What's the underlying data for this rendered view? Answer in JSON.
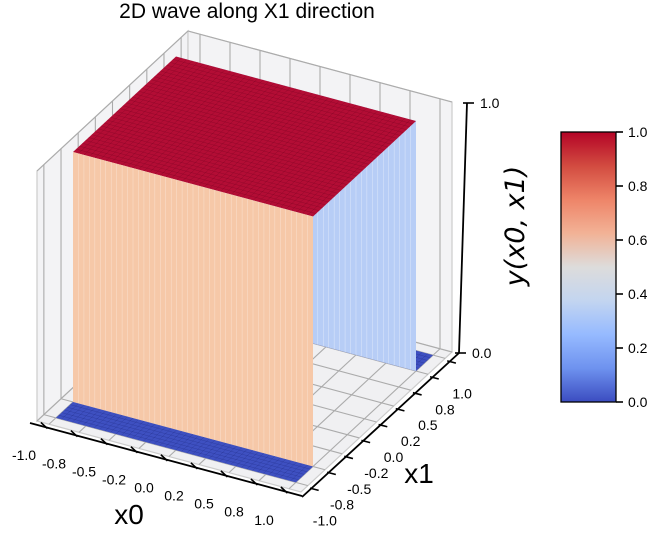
{
  "chart_data": {
    "type": "surface3d",
    "title": "2D wave along X1 direction",
    "xlabel": "x0",
    "ylabel": "x1",
    "zlabel": "y(x0, x1)",
    "view": "matplotlib 3d axes, elev~30 azim~-60",
    "x0_axis": {
      "range": [
        -1.1,
        1.1
      ],
      "tick_values": [
        -1.0,
        -0.75,
        -0.5,
        -0.25,
        0.0,
        0.25,
        0.5,
        0.75,
        1.0
      ],
      "tick_labels": [
        "-1.0",
        "-0.8",
        "-0.5",
        "-0.2",
        "0.0",
        "0.2",
        "0.5",
        "0.8",
        "1.0"
      ]
    },
    "x1_axis": {
      "range": [
        -1.1,
        1.1
      ],
      "tick_values": [
        -1.0,
        -0.75,
        -0.5,
        -0.25,
        0.0,
        0.25,
        0.5,
        0.75,
        1.0
      ],
      "tick_labels": [
        "-1.0",
        "-0.8",
        "-0.5",
        "-0.2",
        "0.0",
        "0.2",
        "0.5",
        "0.8",
        "1.0"
      ]
    },
    "z_axis": {
      "range": [
        0,
        1
      ],
      "tick_values": [
        0,
        1
      ],
      "tick_labels": [
        "0.0",
        "1.0"
      ]
    },
    "surface": {
      "description": "Square wave along x1, constant along x0: y(x0,x1) = 1 for -0.75 <= x1 <= 0.75, else 0",
      "x0_domain": [
        -1,
        1
      ],
      "x1_domain": [
        -1,
        1
      ],
      "step_low": -0.75,
      "step_high": 0.75,
      "value_inside": 1,
      "value_outside": 0,
      "colormap": "coolwarm"
    },
    "colorbar": {
      "tick_values": [
        0.0,
        0.2,
        0.4,
        0.6,
        0.8,
        1.0
      ],
      "tick_labels": [
        "0.0",
        "0.2",
        "0.4",
        "0.6",
        "0.8",
        "1.0"
      ],
      "gradient_top_to_bottom": [
        "#b40426",
        "#d24b40",
        "#ee8468",
        "#f2b296",
        "#dddcdb",
        "#c3d5f0",
        "#96baff",
        "#6e92ef",
        "#3b4cc0"
      ]
    },
    "colors": {
      "surface_top": "#b30d35",
      "surface_top_mesh": "rgba(110,0,30,0.45)",
      "front_wall": "#f6c8a8",
      "front_wall_mesh": "rgba(255,255,255,0.45)",
      "right_wall": "#b7cdf6",
      "right_wall_mesh": "rgba(255,255,255,0.55)",
      "floor_patch": "#3e50c1",
      "floor_patch_mesh": "rgba(20,30,110,0.35)",
      "pane": "#f3f3f5",
      "floor_pane": "#f0f0f2",
      "grid": "#ababab",
      "pane_edge": "#cccccc",
      "axis": "#000000"
    }
  }
}
